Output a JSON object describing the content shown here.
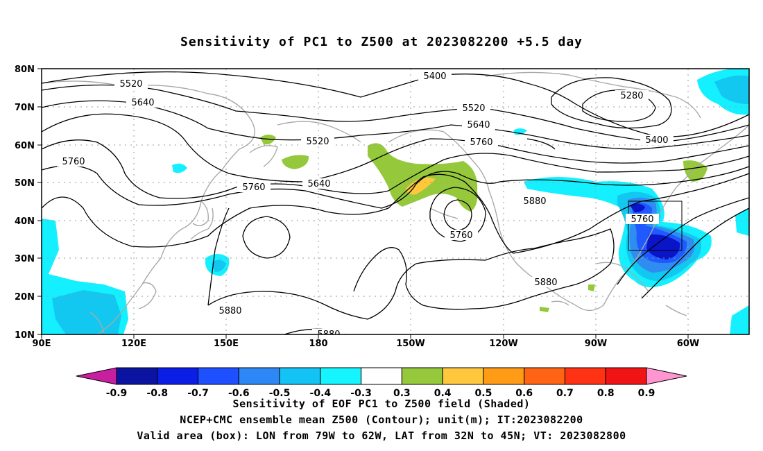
{
  "title": "Sensitivity of PC1 to Z500 at 2023082200 +5.5 day",
  "map": {
    "lon_ticks": [
      "90E",
      "120E",
      "150E",
      "180",
      "150W",
      "120W",
      "90W",
      "60W"
    ],
    "lat_ticks": [
      "80N",
      "70N",
      "60N",
      "50N",
      "40N",
      "30N",
      "20N",
      "10N"
    ],
    "lon_range": [
      90,
      310
    ],
    "lat_range": [
      10,
      80
    ],
    "contour_labels": [
      "5400",
      "5520",
      "5640",
      "5280",
      "5520",
      "5640",
      "5760",
      "5400",
      "5760",
      "5520",
      "5640",
      "5760",
      "5880",
      "5760",
      "5760",
      "5880",
      "5880",
      "5880"
    ],
    "colors": {
      "blue_dark": "#0a14c8",
      "blue": "#1e5aff",
      "blue_mid": "#2f8cf0",
      "cyan": "#12c8f0",
      "cyan_light": "#14f0ff",
      "green": "#96c83c",
      "yellow": "#ffc83c",
      "coast": "#a9a9a9"
    },
    "box": {
      "lon": [
        -79,
        -62
      ],
      "lat": [
        32,
        45
      ]
    }
  },
  "colorbar": {
    "labels": [
      "-0.9",
      "-0.8",
      "-0.7",
      "-0.6",
      "-0.5",
      "-0.4",
      "-0.3",
      "0.3",
      "0.4",
      "0.5",
      "0.6",
      "0.7",
      "0.8",
      "0.9"
    ],
    "colors": [
      "#0a14a0",
      "#0a1ee6",
      "#1e50ff",
      "#2d87f5",
      "#14c3f5",
      "#14f5ff",
      "#ffffff",
      "#96c83c",
      "#ffc83c",
      "#ff9b14",
      "#ff6414",
      "#ff3214",
      "#f01414"
    ],
    "left_arrow": "#c81ea0",
    "right_arrow": "#ff96d2"
  },
  "captions": [
    "Sensitivity of EOF PC1 to Z500 field (Shaded)",
    "NCEP+CMC ensemble mean Z500 (Contour); unit(m); IT:2023082200",
    "Valid area (box): LON from 79W to 62W, LAT from 32N to 45N; VT: 2023082800"
  ]
}
